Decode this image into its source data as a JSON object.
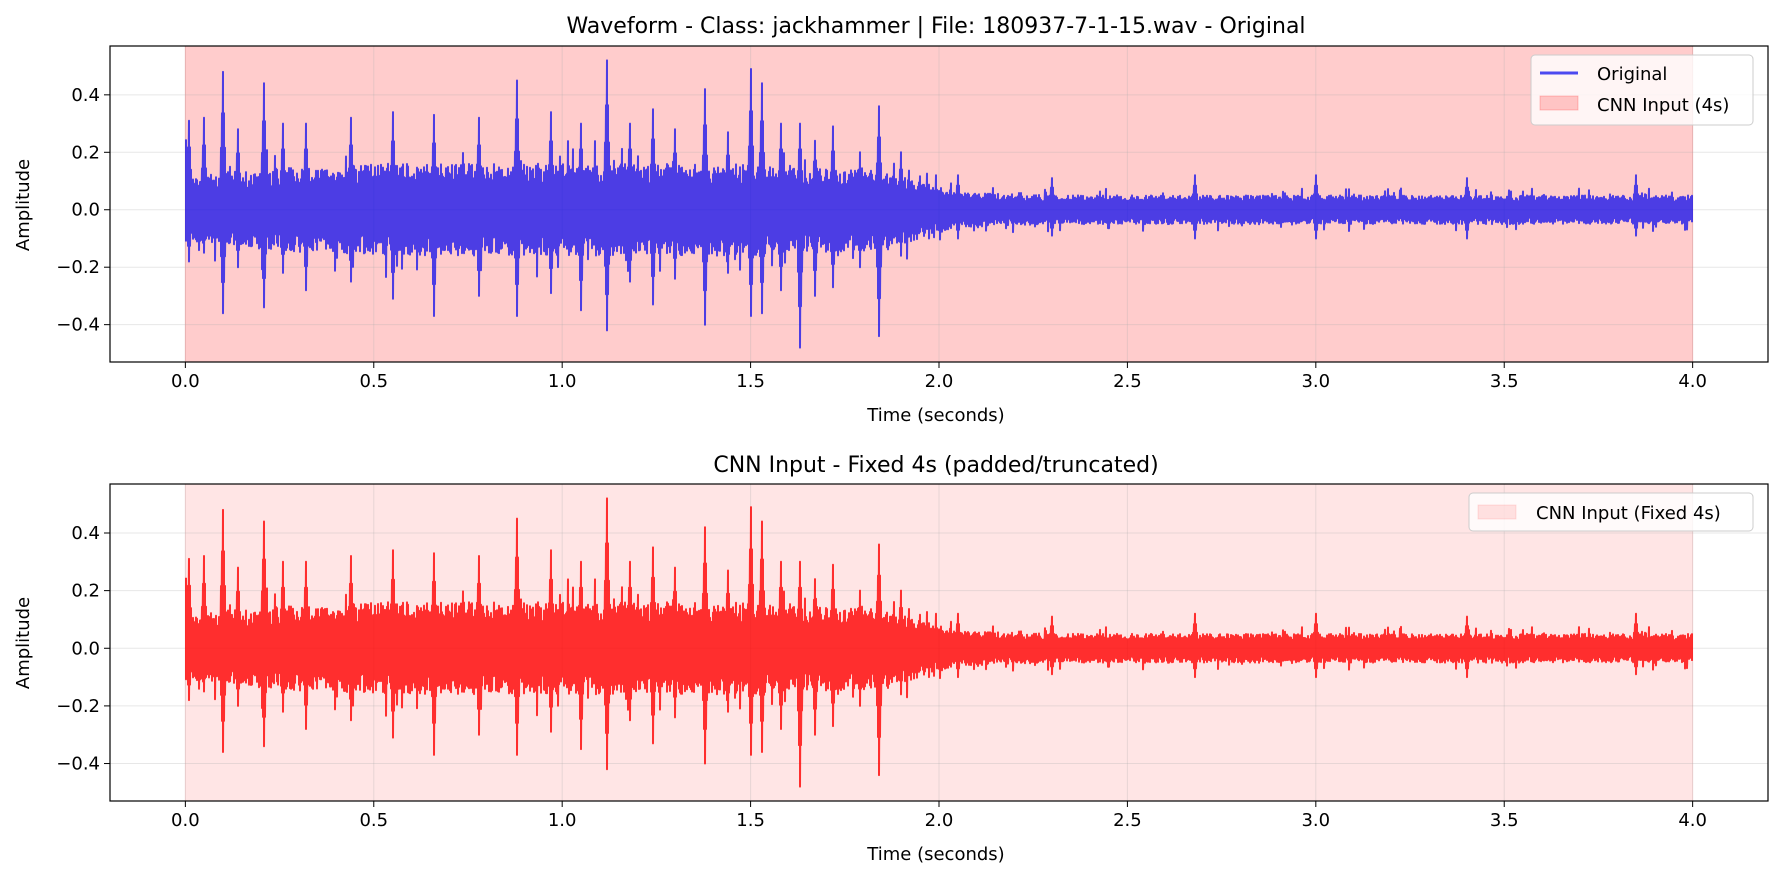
{
  "chart_data": [
    {
      "type": "line",
      "title": "Waveform - Class: jackhammer | File: 180937-7-1-15.wav - Original",
      "xlabel": "Time (seconds)",
      "ylabel": "Amplitude",
      "xlim": [
        -0.2,
        4.2
      ],
      "ylim": [
        -0.53,
        0.57
      ],
      "xticks": [
        0.0,
        0.5,
        1.0,
        1.5,
        2.0,
        2.5,
        3.0,
        3.5,
        4.0
      ],
      "xtick_labels": [
        "0.0",
        "0.5",
        "1.0",
        "1.5",
        "2.0",
        "2.5",
        "3.0",
        "3.5",
        "4.0"
      ],
      "yticks": [
        -0.4,
        -0.2,
        0.0,
        0.2,
        0.4
      ],
      "ytick_labels": [
        "−0.4",
        "−0.2",
        "0.0",
        "0.2",
        "0.4"
      ],
      "grid": true,
      "legend_position": "top-right",
      "span": {
        "name": "CNN Input (4s)",
        "x0": 0.0,
        "x1": 4.0,
        "color": "#ff0000",
        "alpha": 0.2
      },
      "series": [
        {
          "name": "Original",
          "color": "#0000ee",
          "alpha": 0.7,
          "duration": 4.0,
          "envelope": {
            "t": [
              0.0,
              0.05,
              0.1,
              0.2,
              0.3,
              0.5,
              0.8,
              1.0,
              1.3,
              1.5,
              1.7,
              1.85,
              1.95,
              2.05,
              2.3,
              3.0,
              4.0
            ],
            "amp": [
              0.11,
              0.12,
              0.13,
              0.14,
              0.15,
              0.16,
              0.16,
              0.16,
              0.16,
              0.16,
              0.15,
              0.14,
              0.1,
              0.06,
              0.05,
              0.05,
              0.05
            ]
          },
          "peaks": [
            {
              "t": 0.0,
              "max": 0.35,
              "min": -0.12
            },
            {
              "t": 0.01,
              "max": 0.31,
              "min": -0.18
            },
            {
              "t": 0.05,
              "max": 0.32,
              "min": -0.15
            },
            {
              "t": 0.1,
              "max": 0.48,
              "min": -0.36
            },
            {
              "t": 0.14,
              "max": 0.28,
              "min": -0.2
            },
            {
              "t": 0.21,
              "max": 0.44,
              "min": -0.34
            },
            {
              "t": 0.26,
              "max": 0.3,
              "min": -0.22
            },
            {
              "t": 0.32,
              "max": 0.3,
              "min": -0.28
            },
            {
              "t": 0.44,
              "max": 0.32,
              "min": -0.25
            },
            {
              "t": 0.55,
              "max": 0.34,
              "min": -0.31
            },
            {
              "t": 0.66,
              "max": 0.33,
              "min": -0.37
            },
            {
              "t": 0.78,
              "max": 0.32,
              "min": -0.3
            },
            {
              "t": 0.88,
              "max": 0.45,
              "min": -0.37
            },
            {
              "t": 0.97,
              "max": 0.34,
              "min": -0.29
            },
            {
              "t": 1.05,
              "max": 0.3,
              "min": -0.35
            },
            {
              "t": 1.12,
              "max": 0.52,
              "min": -0.42
            },
            {
              "t": 1.18,
              "max": 0.3,
              "min": -0.25
            },
            {
              "t": 1.24,
              "max": 0.35,
              "min": -0.33
            },
            {
              "t": 1.3,
              "max": 0.28,
              "min": -0.24
            },
            {
              "t": 1.38,
              "max": 0.42,
              "min": -0.4
            },
            {
              "t": 1.44,
              "max": 0.27,
              "min": -0.22
            },
            {
              "t": 1.5,
              "max": 0.49,
              "min": -0.37
            },
            {
              "t": 1.53,
              "max": 0.44,
              "min": -0.36
            },
            {
              "t": 1.58,
              "max": 0.3,
              "min": -0.28
            },
            {
              "t": 1.63,
              "max": 0.3,
              "min": -0.48
            },
            {
              "t": 1.67,
              "max": 0.24,
              "min": -0.3
            },
            {
              "t": 1.72,
              "max": 0.29,
              "min": -0.27
            },
            {
              "t": 1.79,
              "max": 0.2,
              "min": -0.2
            },
            {
              "t": 1.84,
              "max": 0.36,
              "min": -0.44
            },
            {
              "t": 1.9,
              "max": 0.2,
              "min": -0.16
            },
            {
              "t": 2.05,
              "max": 0.12,
              "min": -0.1
            },
            {
              "t": 2.3,
              "max": 0.11,
              "min": -0.09
            },
            {
              "t": 2.68,
              "max": 0.12,
              "min": -0.1
            },
            {
              "t": 3.0,
              "max": 0.12,
              "min": -0.1
            },
            {
              "t": 3.4,
              "max": 0.11,
              "min": -0.1
            },
            {
              "t": 3.85,
              "max": 0.12,
              "min": -0.09
            },
            {
              "t": 4.0,
              "max": 0.07,
              "min": -0.04
            }
          ]
        }
      ]
    },
    {
      "type": "area",
      "title": "CNN Input - Fixed 4s (padded/truncated)",
      "xlabel": "Time (seconds)",
      "ylabel": "Amplitude",
      "xlim": [
        -0.2,
        4.2
      ],
      "ylim": [
        -0.53,
        0.57
      ],
      "xticks": [
        0.0,
        0.5,
        1.0,
        1.5,
        2.0,
        2.5,
        3.0,
        3.5,
        4.0
      ],
      "xtick_labels": [
        "0.0",
        "0.5",
        "1.0",
        "1.5",
        "2.0",
        "2.5",
        "3.0",
        "3.5",
        "4.0"
      ],
      "yticks": [
        -0.4,
        -0.2,
        0.0,
        0.2,
        0.4
      ],
      "ytick_labels": [
        "−0.4",
        "−0.2",
        "0.0",
        "0.2",
        "0.4"
      ],
      "grid": true,
      "legend_position": "top-right",
      "span": {
        "name": "CNN Input (Fixed 4s)",
        "x0": 0.0,
        "x1": 4.0,
        "color": "#ff0000",
        "alpha": 0.1
      },
      "series": [
        {
          "color": "#ff0000",
          "alpha": 0.8,
          "duration": 4.0,
          "same_as_original": true
        }
      ]
    }
  ]
}
